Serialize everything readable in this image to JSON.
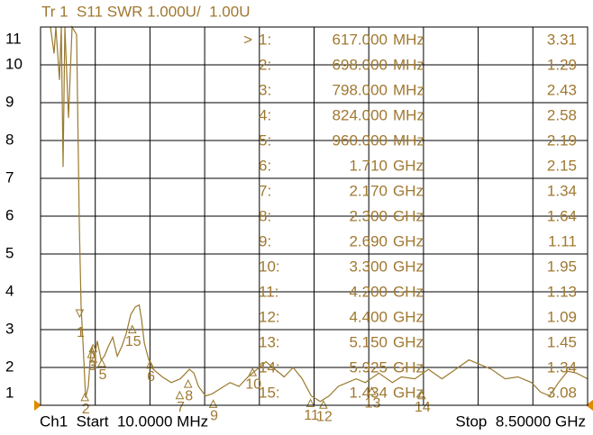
{
  "chart_data": {
    "type": "line",
    "title": "Tr 1  S11 SWR 1.000U/  1.00U",
    "footer_left": "Ch1  Start  10.0000 MHz",
    "footer_right": "Stop  8.50000 GHz",
    "xlim": [
      10,
      8500
    ],
    "ylim": [
      1,
      11
    ],
    "xticks": [
      10,
      859,
      1708,
      2557,
      3406,
      4255,
      5104,
      5953,
      6802,
      7651,
      8500
    ],
    "yticks": [
      1,
      2,
      3,
      4,
      5,
      6,
      7,
      8,
      9,
      10,
      11
    ],
    "grid": true,
    "series": [
      {
        "color": "#9a7a2e",
        "x": [
          164,
          220,
          248,
          304,
          332,
          360,
          388,
          444,
          500,
          570,
          612,
          640,
          668,
          710,
          752,
          780,
          808,
          850,
          890,
          950,
          1000,
          1060,
          1130,
          1200,
          1270,
          1340,
          1410,
          1480,
          1540,
          1580,
          1620,
          1690,
          1760,
          1900,
          2040,
          2180,
          2320,
          2390,
          2460,
          2570,
          2670,
          2810,
          2950,
          3090,
          3230,
          3370,
          3510,
          3650,
          3790,
          3930,
          4070,
          4210,
          4350,
          4490,
          4630,
          4770,
          4910,
          5050,
          5260,
          5470,
          5610,
          5820,
          6030,
          6240,
          6450,
          6660,
          6870,
          7010,
          7220,
          7420,
          7630,
          7770,
          7910,
          8050,
          8190,
          8330,
          8500
        ],
        "values": [
          11,
          10.3,
          11,
          9.6,
          11,
          7.3,
          11,
          8.6,
          11,
          10.8,
          5.8,
          3.6,
          2.7,
          1.2,
          1.5,
          2.2,
          2.55,
          2.3,
          2.7,
          2.2,
          2.3,
          2.55,
          2.8,
          2.3,
          2.55,
          2.9,
          3.4,
          3.6,
          3.65,
          3.25,
          2.65,
          2.2,
          1.95,
          1.75,
          1.6,
          1.7,
          1.95,
          1.85,
          1.5,
          1.25,
          1.3,
          1.45,
          1.6,
          1.5,
          1.75,
          1.95,
          2.15,
          1.95,
          1.75,
          2.0,
          1.7,
          1.25,
          1.1,
          1.25,
          1.5,
          1.6,
          1.7,
          1.6,
          1.85,
          1.6,
          1.75,
          1.7,
          1.95,
          1.7,
          1.95,
          2.2,
          2.05,
          1.95,
          1.7,
          1.75,
          1.6,
          1.35,
          1.25,
          1.6,
          1.9,
          1.85,
          1.7
        ]
      }
    ],
    "markers": {
      "active_indicator": ">",
      "ids": [
        "1",
        "2",
        "3",
        "4",
        "5",
        "6",
        "7",
        "8",
        "9",
        "10",
        "11",
        "12",
        "13",
        "14",
        "15"
      ],
      "labels": [
        "1:",
        "2:",
        "3:",
        "4:",
        "5:",
        "6:",
        "7:",
        "8:",
        "9:",
        "10:",
        "11:",
        "12:",
        "13:",
        "14:",
        "15:"
      ],
      "freq_labels": [
        "617.000",
        "698.000",
        "798.000",
        "824.000",
        "960.000",
        "1.710",
        "2.170",
        "2.300",
        "2.690",
        "3.300",
        "4.200",
        "4.400",
        "5.150",
        "5.925",
        "1.434"
      ],
      "units": [
        "MHz",
        "MHz",
        "MHz",
        "MHz",
        "MHz",
        "GHz",
        "GHz",
        "GHz",
        "GHz",
        "GHz",
        "GHz",
        "GHz",
        "GHz",
        "GHz",
        "GHz"
      ],
      "x": [
        617,
        698,
        798,
        824,
        960,
        1710,
        2170,
        2300,
        2690,
        3300,
        4200,
        4400,
        5150,
        5925,
        1434
      ],
      "values": [
        3.31,
        1.29,
        2.43,
        2.58,
        2.19,
        2.15,
        1.34,
        1.64,
        1.11,
        1.95,
        1.13,
        1.09,
        1.45,
        1.34,
        3.08
      ]
    }
  }
}
